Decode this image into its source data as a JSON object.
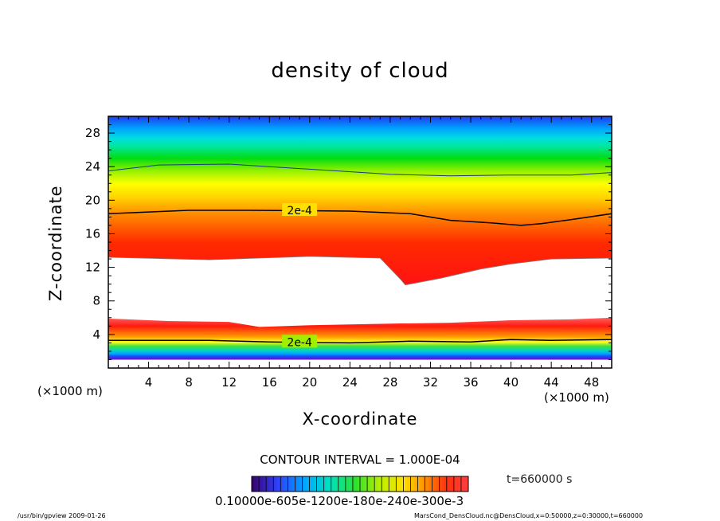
{
  "chart_data": {
    "type": "heatmap",
    "title": "density of cloud",
    "xlabel": "X-coordinate",
    "ylabel": "Z-coordinate",
    "x_unit_left": "(×1000 m)",
    "x_unit_right": "(×1000 m)",
    "xlim": [
      0,
      50
    ],
    "ylim": [
      0,
      30
    ],
    "x_ticks": [
      "4",
      "8",
      "12",
      "16",
      "20",
      "24",
      "28",
      "32",
      "36",
      "40",
      "44",
      "48"
    ],
    "y_ticks": [
      "4",
      "8",
      "12",
      "16",
      "20",
      "24",
      "28"
    ],
    "x_tick_values": [
      4,
      8,
      12,
      16,
      20,
      24,
      28,
      32,
      36,
      40,
      44,
      48
    ],
    "y_tick_values": [
      4,
      8,
      12,
      16,
      20,
      24,
      28
    ],
    "upper_cloud_base_z": [
      [
        0,
        13.2
      ],
      [
        10,
        12.9
      ],
      [
        20,
        13.3
      ],
      [
        27,
        13.1
      ],
      [
        29,
        10.6
      ],
      [
        29.5,
        9.9
      ],
      [
        33,
        10.7
      ],
      [
        37,
        11.8
      ],
      [
        40,
        12.4
      ],
      [
        44,
        13.0
      ],
      [
        50,
        13.1
      ]
    ],
    "upper_contour_2e4_z": [
      [
        0,
        18.4
      ],
      [
        8,
        18.8
      ],
      [
        14,
        18.8
      ],
      [
        24,
        18.7
      ],
      [
        30,
        18.4
      ],
      [
        34,
        17.6
      ],
      [
        38,
        17.3
      ],
      [
        41,
        17.0
      ],
      [
        43,
        17.2
      ],
      [
        46,
        17.7
      ],
      [
        50,
        18.4
      ]
    ],
    "upper_outer_contour_z": [
      [
        0,
        23.5
      ],
      [
        5,
        24.2
      ],
      [
        12,
        24.3
      ],
      [
        20,
        23.7
      ],
      [
        28,
        23.1
      ],
      [
        34,
        22.9
      ],
      [
        40,
        23.0
      ],
      [
        46,
        23.0
      ],
      [
        50,
        23.3
      ]
    ],
    "lower_cloud_top_z": [
      [
        0,
        5.9
      ],
      [
        6,
        5.6
      ],
      [
        12,
        5.5
      ],
      [
        15,
        4.9
      ],
      [
        20,
        5.1
      ],
      [
        28,
        5.3
      ],
      [
        34,
        5.4
      ],
      [
        40,
        5.7
      ],
      [
        46,
        5.8
      ],
      [
        50,
        6.0
      ]
    ],
    "lower_contour_2e4_z": [
      [
        0,
        3.3
      ],
      [
        10,
        3.3
      ],
      [
        16,
        3.1
      ],
      [
        24,
        3.0
      ],
      [
        30,
        3.2
      ],
      [
        36,
        3.1
      ],
      [
        40,
        3.4
      ],
      [
        44,
        3.3
      ],
      [
        50,
        3.4
      ]
    ],
    "contour_labels": [
      "2e-4",
      "2e-4"
    ],
    "contour_interval": "CONTOUR INTERVAL = 1.000E-04",
    "colorbar_labels": "0.10000e-605e-1200e-180e-240e-300e-3",
    "colorbar_tick_count": 30,
    "colors": {
      "upper_cloud": [
        "#ff1010",
        "#ff3a00",
        "#ff9000",
        "#ffd200",
        "#ffff00",
        "#80f000",
        "#00dd10",
        "#00e890",
        "#00e0e0",
        "#00a0ff",
        "#2050ff",
        "#1a2ce8"
      ],
      "lower_cloud": [
        "#ff2010",
        "#ffa000",
        "#ffff20",
        "#40e040",
        "#00d8c0",
        "#00a0ff",
        "#2040ff",
        "#7010c0"
      ]
    }
  },
  "time": "t=660000 s",
  "footer": {
    "left": "/usr/bin/gpview   2009-01-26",
    "right": "MarsCond_DensCloud.nc@DensCloud,x=0:50000,z=0:30000,t=660000"
  }
}
